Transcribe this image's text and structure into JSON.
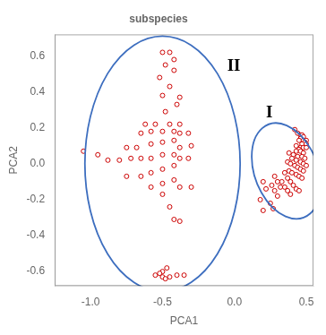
{
  "chart_data": {
    "type": "scatter",
    "title": "subspecies",
    "xlabel": "PCA1",
    "ylabel": "PCA2",
    "xlim": [
      -1.25,
      0.55
    ],
    "ylim": [
      -0.68,
      0.72
    ],
    "xticks": [
      {
        "value": -1.0,
        "label": "-1.0"
      },
      -0.5,
      {
        "value": 0.0,
        "label": "0.0"
      },
      0.5
    ],
    "yticks": [
      -0.6,
      -0.4,
      -0.2,
      {
        "value": 0.0,
        "label": "0.0"
      },
      0.2,
      0.4,
      0.6
    ],
    "grid": false,
    "marker": "circle",
    "series": [
      {
        "color": "#cc0000",
        "values": [
          [
            0.42,
            0.19
          ],
          [
            0.44,
            0.17
          ],
          [
            0.46,
            0.16
          ],
          [
            0.47,
            0.16
          ],
          [
            0.48,
            0.15
          ],
          [
            0.46,
            0.14
          ],
          [
            0.45,
            0.13
          ],
          [
            0.48,
            0.13
          ],
          [
            0.5,
            0.13
          ],
          [
            0.49,
            0.12
          ],
          [
            0.47,
            0.11
          ],
          [
            0.5,
            0.11
          ],
          [
            0.43,
            0.1
          ],
          [
            0.46,
            0.09
          ],
          [
            0.48,
            0.09
          ],
          [
            0.5,
            0.09
          ],
          [
            0.45,
            0.08
          ],
          [
            0.43,
            0.07
          ],
          [
            0.46,
            0.07
          ],
          [
            0.48,
            0.06
          ],
          [
            0.38,
            0.06
          ],
          [
            0.41,
            0.05
          ],
          [
            0.44,
            0.04
          ],
          [
            0.47,
            0.04
          ],
          [
            0.49,
            0.03
          ],
          [
            0.4,
            0.03
          ],
          [
            0.43,
            0.02
          ],
          [
            0.46,
            0.01
          ],
          [
            0.48,
            0.0
          ],
          [
            0.5,
            -0.01
          ],
          [
            0.37,
            0.01
          ],
          [
            0.39,
            0.0
          ],
          [
            0.42,
            -0.01
          ],
          [
            0.44,
            -0.02
          ],
          [
            0.46,
            -0.03
          ],
          [
            0.48,
            -0.04
          ],
          [
            0.38,
            -0.04
          ],
          [
            0.4,
            -0.05
          ],
          [
            0.43,
            -0.06
          ],
          [
            0.45,
            -0.07
          ],
          [
            0.47,
            -0.08
          ],
          [
            0.35,
            -0.05
          ],
          [
            0.37,
            -0.08
          ],
          [
            0.39,
            -0.1
          ],
          [
            0.41,
            -0.12
          ],
          [
            0.43,
            -0.14
          ],
          [
            0.45,
            -0.15
          ],
          [
            0.33,
            -0.1
          ],
          [
            0.35,
            -0.13
          ],
          [
            0.37,
            -0.15
          ],
          [
            0.39,
            -0.17
          ],
          [
            0.28,
            -0.07
          ],
          [
            0.3,
            -0.1
          ],
          [
            0.32,
            -0.13
          ],
          [
            0.26,
            -0.12
          ],
          [
            0.28,
            -0.15
          ],
          [
            0.3,
            -0.18
          ],
          [
            0.2,
            -0.1
          ],
          [
            0.22,
            -0.14
          ],
          [
            0.18,
            -0.2
          ],
          [
            0.25,
            -0.22
          ],
          [
            0.27,
            -0.25
          ],
          [
            0.2,
            -0.26
          ]
        ]
      },
      {
        "color": "#cc0000",
        "values": [
          [
            -0.5,
            0.62
          ],
          [
            -0.45,
            0.62
          ],
          [
            -0.42,
            0.58
          ],
          [
            -0.48,
            0.55
          ],
          [
            -0.42,
            0.52
          ],
          [
            -0.52,
            0.48
          ],
          [
            -0.45,
            0.43
          ],
          [
            -0.5,
            0.38
          ],
          [
            -0.38,
            0.37
          ],
          [
            -0.4,
            0.33
          ],
          [
            -0.48,
            0.29
          ],
          [
            -0.55,
            0.22
          ],
          [
            -0.62,
            0.22
          ],
          [
            -0.45,
            0.22
          ],
          [
            -0.38,
            0.22
          ],
          [
            -0.42,
            0.18
          ],
          [
            -0.5,
            0.18
          ],
          [
            -0.58,
            0.18
          ],
          [
            -0.65,
            0.17
          ],
          [
            -0.38,
            0.17
          ],
          [
            -0.32,
            0.17
          ],
          [
            -0.42,
            0.13
          ],
          [
            -0.5,
            0.12
          ],
          [
            -0.58,
            0.11
          ],
          [
            -0.68,
            0.09
          ],
          [
            -0.75,
            0.09
          ],
          [
            -0.38,
            0.09
          ],
          [
            -0.3,
            0.1
          ],
          [
            -0.42,
            0.05
          ],
          [
            -0.5,
            0.05
          ],
          [
            -0.58,
            0.03
          ],
          [
            -0.65,
            0.03
          ],
          [
            -0.72,
            0.03
          ],
          [
            -0.8,
            0.02
          ],
          [
            -0.88,
            0.02
          ],
          [
            -0.95,
            0.05
          ],
          [
            -1.05,
            0.07
          ],
          [
            -0.38,
            0.03
          ],
          [
            -0.32,
            0.03
          ],
          [
            -0.42,
            -0.01
          ],
          [
            -0.5,
            -0.03
          ],
          [
            -0.58,
            -0.05
          ],
          [
            -0.65,
            -0.07
          ],
          [
            -0.75,
            -0.07
          ],
          [
            -0.42,
            -0.09
          ],
          [
            -0.5,
            -0.11
          ],
          [
            -0.58,
            -0.13
          ],
          [
            -0.38,
            -0.13
          ],
          [
            -0.3,
            -0.13
          ],
          [
            -0.5,
            -0.17
          ],
          [
            -0.45,
            -0.24
          ],
          [
            -0.42,
            -0.31
          ],
          [
            -0.38,
            -0.32
          ],
          [
            -0.47,
            -0.58
          ],
          [
            -0.5,
            -0.6
          ],
          [
            -0.52,
            -0.61
          ],
          [
            -0.55,
            -0.62
          ],
          [
            -0.5,
            -0.63
          ],
          [
            -0.45,
            -0.63
          ],
          [
            -0.4,
            -0.62
          ],
          [
            -0.35,
            -0.62
          ],
          [
            -0.48,
            -0.64
          ]
        ]
      }
    ],
    "ellipses": [
      {
        "center": [
          0.36,
          -0.04
        ],
        "width": 0.42,
        "height": 0.58,
        "angle": 35,
        "color": "#3d6ebf"
      },
      {
        "center": [
          -0.5,
          0.0
        ],
        "width": 1.08,
        "height": 1.42,
        "angle": 0,
        "color": "#3d6ebf"
      }
    ],
    "annotations": [
      {
        "text": "I",
        "x": 0.22,
        "y": 0.26
      },
      {
        "text": "II",
        "x": -0.05,
        "y": 0.52
      }
    ]
  }
}
